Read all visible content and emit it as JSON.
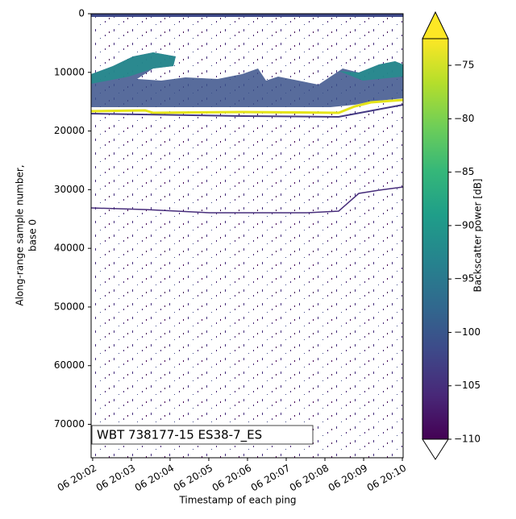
{
  "chart_data": {
    "type": "echogram",
    "xlabel": "Timestamp of each ping",
    "ylabel": [
      "Along-range sample number,",
      "base 0"
    ],
    "annotation": "WBT 738177-15 ES38-7_ES",
    "xlim": [
      1.96,
      10.02
    ],
    "xticks": [
      {
        "value": 2,
        "label": "06 20:02"
      },
      {
        "value": 3,
        "label": "06 20:03"
      },
      {
        "value": 4,
        "label": "06 20:04"
      },
      {
        "value": 5,
        "label": "06 20:05"
      },
      {
        "value": 6,
        "label": "06 20:06"
      },
      {
        "value": 7,
        "label": "06 20:07"
      },
      {
        "value": 8,
        "label": "06 20:08"
      },
      {
        "value": 9,
        "label": "06 20:09"
      },
      {
        "value": 10,
        "label": "06 20:10"
      }
    ],
    "ylim": [
      75700,
      0
    ],
    "yticks": [
      0,
      10000,
      20000,
      30000,
      40000,
      50000,
      60000,
      70000
    ],
    "colorbar": {
      "label": "Backscatter power [dB]",
      "clim": [
        -110,
        -72.5
      ],
      "ticks": [
        {
          "value": -110,
          "label": "−110"
        },
        {
          "value": -105,
          "label": "−105"
        },
        {
          "value": -100,
          "label": "−100"
        },
        {
          "value": -95,
          "label": "−95"
        },
        {
          "value": -90,
          "label": "−90"
        },
        {
          "value": -85,
          "label": "−85"
        },
        {
          "value": -80,
          "label": "−80"
        },
        {
          "value": -75,
          "label": "−75"
        }
      ]
    }
  }
}
